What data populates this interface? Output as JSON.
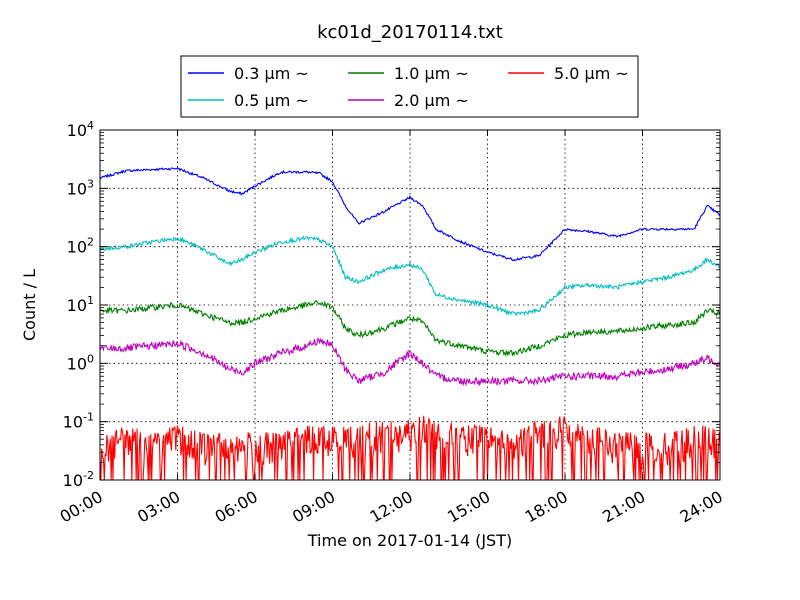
{
  "chart_data": {
    "type": "line",
    "title": "kc01d_20170114.txt",
    "xlabel": "Time on 2017-01-14 (JST)",
    "ylabel": "Count / L",
    "yscale": "log",
    "ylim": [
      0.01,
      10000
    ],
    "xlim": [
      "00:00",
      "24:00"
    ],
    "x_ticks": [
      "00:00",
      "03:00",
      "06:00",
      "09:00",
      "12:00",
      "15:00",
      "18:00",
      "21:00",
      "24:00"
    ],
    "y_ticks": [
      {
        "base": "10",
        "exp": "-2"
      },
      {
        "base": "10",
        "exp": "-1"
      },
      {
        "base": "10",
        "exp": "0"
      },
      {
        "base": "10",
        "exp": "1"
      },
      {
        "base": "10",
        "exp": "2"
      },
      {
        "base": "10",
        "exp": "3"
      },
      {
        "base": "10",
        "exp": "4"
      }
    ],
    "grid": true,
    "legend_position": "top",
    "x_hours": [
      0,
      1,
      2,
      3,
      4,
      5,
      5.5,
      6,
      7,
      8,
      8.5,
      9,
      9.5,
      10,
      11,
      12,
      12.5,
      13,
      14,
      15,
      16,
      17,
      18,
      19,
      20,
      21,
      22,
      23,
      23.5,
      24
    ],
    "series": [
      {
        "name": "0.3 μm ~",
        "color": "#0000ff",
        "values": [
          1500,
          2000,
          2100,
          2200,
          1500,
          900,
          800,
          1100,
          1900,
          1900,
          1800,
          1300,
          500,
          250,
          400,
          700,
          500,
          200,
          120,
          80,
          60,
          70,
          200,
          180,
          150,
          200,
          200,
          200,
          500,
          350
        ]
      },
      {
        "name": "0.5 μm ~",
        "color": "#00bfbf",
        "values": [
          90,
          100,
          120,
          140,
          90,
          50,
          60,
          80,
          120,
          140,
          130,
          100,
          30,
          25,
          40,
          50,
          40,
          15,
          12,
          10,
          7,
          8,
          20,
          22,
          20,
          25,
          30,
          40,
          60,
          45
        ]
      },
      {
        "name": "1.0 μm ~",
        "color": "#008000",
        "values": [
          8,
          8,
          9,
          10,
          7,
          5,
          5,
          6,
          8,
          10,
          11,
          9,
          4,
          3,
          4,
          6,
          5,
          2.5,
          2,
          1.6,
          1.5,
          2,
          3,
          3.5,
          3.5,
          4,
          4.5,
          5,
          8,
          7
        ]
      },
      {
        "name": "2.0 μm ~",
        "color": "#bf00bf",
        "values": [
          1.8,
          1.8,
          2,
          2.2,
          1.5,
          0.8,
          0.7,
          1.0,
          1.5,
          2,
          2.5,
          2,
          0.8,
          0.5,
          0.7,
          1.5,
          1.0,
          0.6,
          0.5,
          0.5,
          0.5,
          0.5,
          0.6,
          0.6,
          0.6,
          0.7,
          0.8,
          1.0,
          1.2,
          1.0
        ]
      },
      {
        "name": "5.0 μm ~",
        "color": "#ff0000",
        "values": [
          0.03,
          0.04,
          0.03,
          0.04,
          0.03,
          0.03,
          0.03,
          0.03,
          0.03,
          0.04,
          0.04,
          0.04,
          0.04,
          0.04,
          0.05,
          0.05,
          0.06,
          0.05,
          0.04,
          0.04,
          0.03,
          0.05,
          0.06,
          0.04,
          0.03,
          0.03,
          0.03,
          0.04,
          0.04,
          0.03
        ]
      }
    ]
  }
}
